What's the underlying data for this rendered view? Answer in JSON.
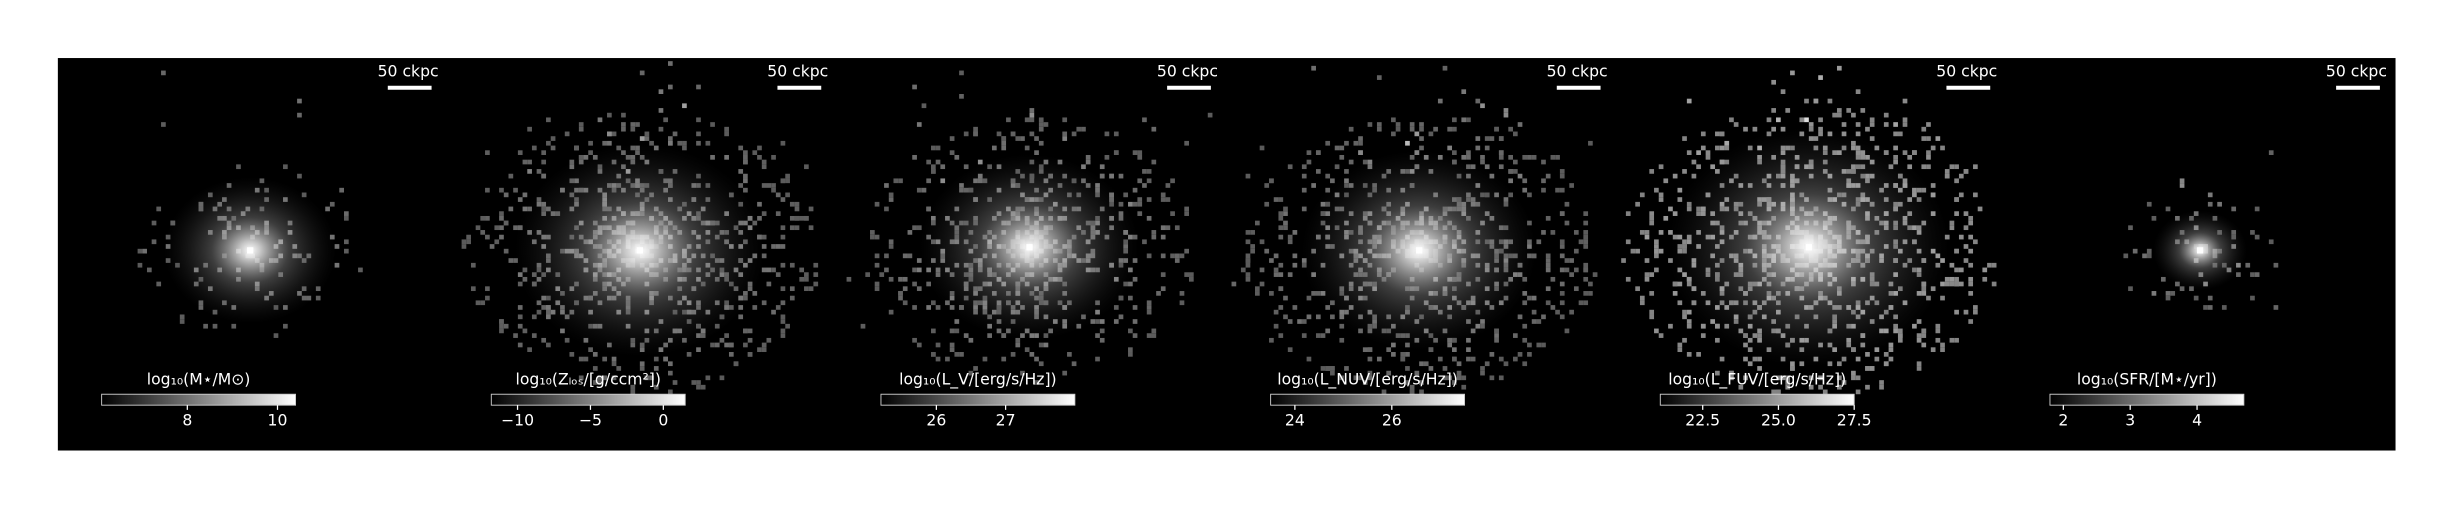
{
  "panels": [
    {
      "scalebar": "50 ckpc",
      "colorbar": {
        "label": "log₁₀(M⋆/M⊙)",
        "lim": [
          6.1,
          10.4
        ],
        "ticks": [
          8,
          10
        ]
      }
    },
    {
      "scalebar": "50 ckpc",
      "colorbar": {
        "label": "log₁₀(Zₗₒₛ/[g/ccm²])",
        "lim": [
          -11.8,
          1.5
        ],
        "ticks": [
          {
            "value": -10,
            "label": "−10"
          },
          {
            "value": -5,
            "label": "−5"
          },
          0
        ]
      }
    },
    {
      "scalebar": "50 ckpc",
      "colorbar": {
        "label": "log₁₀(L_V/[erg/s/Hz])",
        "lim": [
          25.2,
          28.0
        ],
        "ticks": [
          26,
          27
        ]
      }
    },
    {
      "scalebar": "50 ckpc",
      "colorbar": {
        "label": "log₁₀(L_NUV/[erg/s/Hz])",
        "lim": [
          23.5,
          27.5
        ],
        "ticks": [
          24,
          26
        ]
      }
    },
    {
      "scalebar": "50 ckpc",
      "colorbar": {
        "label": "log₁₀(L_FUV/[erg/s/Hz])",
        "lim": [
          21.1,
          27.5
        ],
        "ticks": [
          22.5,
          {
            "value": 25,
            "label": "25.0"
          },
          27.5
        ]
      }
    },
    {
      "scalebar": "50 ckpc",
      "colorbar": {
        "label": "log₁₀(SFR/[M⋆/yr])",
        "lim": [
          1.8,
          4.7
        ],
        "ticks": [
          2,
          3,
          4
        ]
      }
    }
  ]
}
